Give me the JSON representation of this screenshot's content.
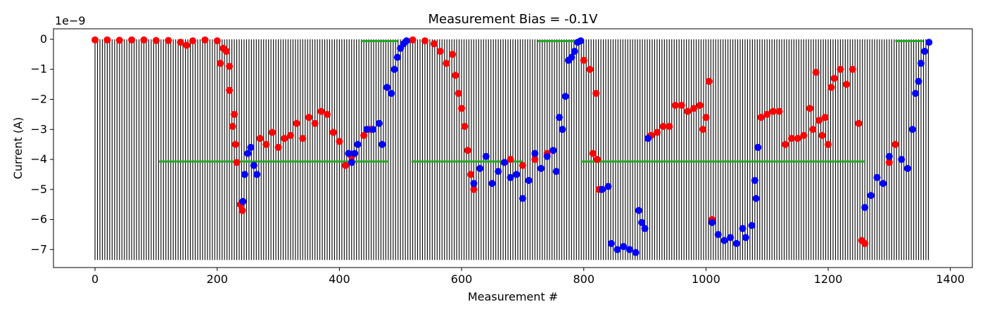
{
  "chart_data": {
    "type": "scatter",
    "title": "Measurement Bias = -0.1V",
    "xlabel": "Measurement #",
    "ylabel": "Current (A)",
    "y_offset_label": "1e−9",
    "xlim": [
      -68,
      1436
    ],
    "ylim": [
      -7.6,
      0.35
    ],
    "xticks": [
      0,
      200,
      400,
      600,
      800,
      1000,
      1200,
      1400
    ],
    "xtick_labels": [
      "0",
      "200",
      "400",
      "600",
      "800",
      "1000",
      "1200",
      "1400"
    ],
    "yticks": [
      0,
      -1,
      -2,
      -3,
      -4,
      -5,
      -6,
      -7
    ],
    "ytick_labels": [
      "0",
      "−1",
      "−2",
      "−3",
      "−4",
      "−5",
      "−6",
      "−7"
    ],
    "grid": false,
    "vertical_lines": {
      "color": "#000000",
      "x_start": 0,
      "x_end": 1365,
      "step": 4
    },
    "green_segments": [
      {
        "x": [
          105,
          480
        ],
        "y": -4.07
      },
      {
        "x": [
          435,
          495
        ],
        "y": -0.06
      },
      {
        "x": [
          518,
          700
        ],
        "y": -4.07
      },
      {
        "x": [
          725,
          790
        ],
        "y": -0.06
      },
      {
        "x": [
          795,
          1260
        ],
        "y": -4.07
      },
      {
        "x": [
          1310,
          1355
        ],
        "y": -0.06
      }
    ],
    "series": [
      {
        "color": "#ff0000",
        "points": [
          [
            0,
            -0.02
          ],
          [
            20,
            -0.02
          ],
          [
            40,
            -0.03
          ],
          [
            60,
            -0.02
          ],
          [
            80,
            -0.02
          ],
          [
            100,
            -0.04
          ],
          [
            120,
            -0.04
          ],
          [
            140,
            -0.1
          ],
          [
            150,
            -0.2
          ],
          [
            160,
            -0.05
          ],
          [
            180,
            -0.02
          ],
          [
            200,
            -0.05
          ],
          [
            205,
            -0.8
          ],
          [
            210,
            -0.3
          ],
          [
            215,
            -0.4
          ],
          [
            220,
            -0.9
          ],
          [
            220,
            -1.7
          ],
          [
            225,
            -2.9
          ],
          [
            228,
            -2.5
          ],
          [
            230,
            -3.5
          ],
          [
            232,
            -4.1
          ],
          [
            238,
            -5.5
          ],
          [
            241,
            -5.7
          ],
          [
            260,
            -4.2
          ],
          [
            270,
            -3.3
          ],
          [
            280,
            -3.5
          ],
          [
            290,
            -3.1
          ],
          [
            300,
            -3.6
          ],
          [
            310,
            -3.3
          ],
          [
            320,
            -3.2
          ],
          [
            330,
            -2.8
          ],
          [
            340,
            -3.3
          ],
          [
            350,
            -2.6
          ],
          [
            360,
            -2.8
          ],
          [
            370,
            -2.4
          ],
          [
            380,
            -2.5
          ],
          [
            390,
            -3.1
          ],
          [
            400,
            -3.4
          ],
          [
            410,
            -4.2
          ],
          [
            420,
            -3.9
          ],
          [
            440,
            -3.2
          ],
          [
            450,
            -3.0
          ],
          [
            520,
            -0.02
          ],
          [
            540,
            -0.05
          ],
          [
            555,
            -0.15
          ],
          [
            565,
            -0.4
          ],
          [
            575,
            -0.8
          ],
          [
            585,
            -0.5
          ],
          [
            590,
            -1.2
          ],
          [
            595,
            -1.8
          ],
          [
            600,
            -2.3
          ],
          [
            605,
            -2.9
          ],
          [
            610,
            -3.7
          ],
          [
            615,
            -4.5
          ],
          [
            620,
            -5.0
          ],
          [
            680,
            -4.0
          ],
          [
            700,
            -4.2
          ],
          [
            720,
            -4.0
          ],
          [
            740,
            -3.8
          ],
          [
            800,
            -0.7
          ],
          [
            810,
            -1.0
          ],
          [
            815,
            -3.8
          ],
          [
            820,
            -1.8
          ],
          [
            822,
            -4.0
          ],
          [
            825,
            -5.0
          ],
          [
            910,
            -3.2
          ],
          [
            920,
            -3.1
          ],
          [
            930,
            -2.9
          ],
          [
            940,
            -2.9
          ],
          [
            950,
            -2.2
          ],
          [
            960,
            -2.2
          ],
          [
            970,
            -2.4
          ],
          [
            980,
            -2.3
          ],
          [
            990,
            -2.2
          ],
          [
            995,
            -3.0
          ],
          [
            1000,
            -2.6
          ],
          [
            1005,
            -1.4
          ],
          [
            1010,
            -6.0
          ],
          [
            1085,
            -3.6
          ],
          [
            1090,
            -2.6
          ],
          [
            1100,
            -2.5
          ],
          [
            1110,
            -2.4
          ],
          [
            1120,
            -2.4
          ],
          [
            1130,
            -3.5
          ],
          [
            1140,
            -3.3
          ],
          [
            1150,
            -3.3
          ],
          [
            1160,
            -3.2
          ],
          [
            1170,
            -2.3
          ],
          [
            1175,
            -3.0
          ],
          [
            1180,
            -1.1
          ],
          [
            1185,
            -2.7
          ],
          [
            1190,
            -3.2
          ],
          [
            1195,
            -2.6
          ],
          [
            1200,
            -3.5
          ],
          [
            1205,
            -1.6
          ],
          [
            1210,
            -1.3
          ],
          [
            1220,
            -1.0
          ],
          [
            1230,
            -1.5
          ],
          [
            1240,
            -1.0
          ],
          [
            1250,
            -2.8
          ],
          [
            1255,
            -6.7
          ],
          [
            1260,
            -6.8
          ],
          [
            1300,
            -4.1
          ],
          [
            1310,
            -3.5
          ]
        ]
      },
      {
        "color": "#0000ff",
        "points": [
          [
            242,
            -5.4
          ],
          [
            245,
            -4.5
          ],
          [
            250,
            -3.8
          ],
          [
            255,
            -3.6
          ],
          [
            260,
            -4.2
          ],
          [
            265,
            -4.5
          ],
          [
            415,
            -3.8
          ],
          [
            420,
            -4.1
          ],
          [
            425,
            -3.8
          ],
          [
            430,
            -3.5
          ],
          [
            445,
            -3.0
          ],
          [
            455,
            -3.0
          ],
          [
            465,
            -2.8
          ],
          [
            470,
            -3.5
          ],
          [
            478,
            -1.6
          ],
          [
            485,
            -1.8
          ],
          [
            490,
            -1.0
          ],
          [
            495,
            -0.6
          ],
          [
            500,
            -0.3
          ],
          [
            505,
            -0.15
          ],
          [
            510,
            -0.05
          ],
          [
            620,
            -4.8
          ],
          [
            630,
            -4.3
          ],
          [
            640,
            -3.9
          ],
          [
            650,
            -4.8
          ],
          [
            660,
            -4.4
          ],
          [
            670,
            -4.1
          ],
          [
            680,
            -4.6
          ],
          [
            690,
            -4.5
          ],
          [
            700,
            -5.3
          ],
          [
            710,
            -4.7
          ],
          [
            720,
            -3.8
          ],
          [
            730,
            -4.3
          ],
          [
            740,
            -3.9
          ],
          [
            750,
            -3.7
          ],
          [
            755,
            -4.4
          ],
          [
            760,
            -2.6
          ],
          [
            765,
            -3.0
          ],
          [
            770,
            -1.9
          ],
          [
            775,
            -0.7
          ],
          [
            780,
            -0.6
          ],
          [
            785,
            -0.4
          ],
          [
            790,
            -0.1
          ],
          [
            795,
            -0.05
          ],
          [
            830,
            -5.0
          ],
          [
            840,
            -4.9
          ],
          [
            845,
            -6.8
          ],
          [
            855,
            -7.0
          ],
          [
            865,
            -6.9
          ],
          [
            875,
            -7.0
          ],
          [
            885,
            -7.1
          ],
          [
            890,
            -5.7
          ],
          [
            895,
            -6.1
          ],
          [
            900,
            -6.3
          ],
          [
            905,
            -3.3
          ],
          [
            1010,
            -6.1
          ],
          [
            1020,
            -6.5
          ],
          [
            1030,
            -6.7
          ],
          [
            1040,
            -6.6
          ],
          [
            1050,
            -6.8
          ],
          [
            1060,
            -6.3
          ],
          [
            1065,
            -6.6
          ],
          [
            1075,
            -6.2
          ],
          [
            1080,
            -4.7
          ],
          [
            1082,
            -5.3
          ],
          [
            1085,
            -3.6
          ],
          [
            1260,
            -5.6
          ],
          [
            1270,
            -5.2
          ],
          [
            1280,
            -4.6
          ],
          [
            1290,
            -4.8
          ],
          [
            1300,
            -3.9
          ],
          [
            1320,
            -4.0
          ],
          [
            1330,
            -4.3
          ],
          [
            1338,
            -3.0
          ],
          [
            1343,
            -1.8
          ],
          [
            1348,
            -1.4
          ],
          [
            1352,
            -0.8
          ],
          [
            1358,
            -0.4
          ],
          [
            1365,
            -0.1
          ]
        ]
      }
    ]
  }
}
